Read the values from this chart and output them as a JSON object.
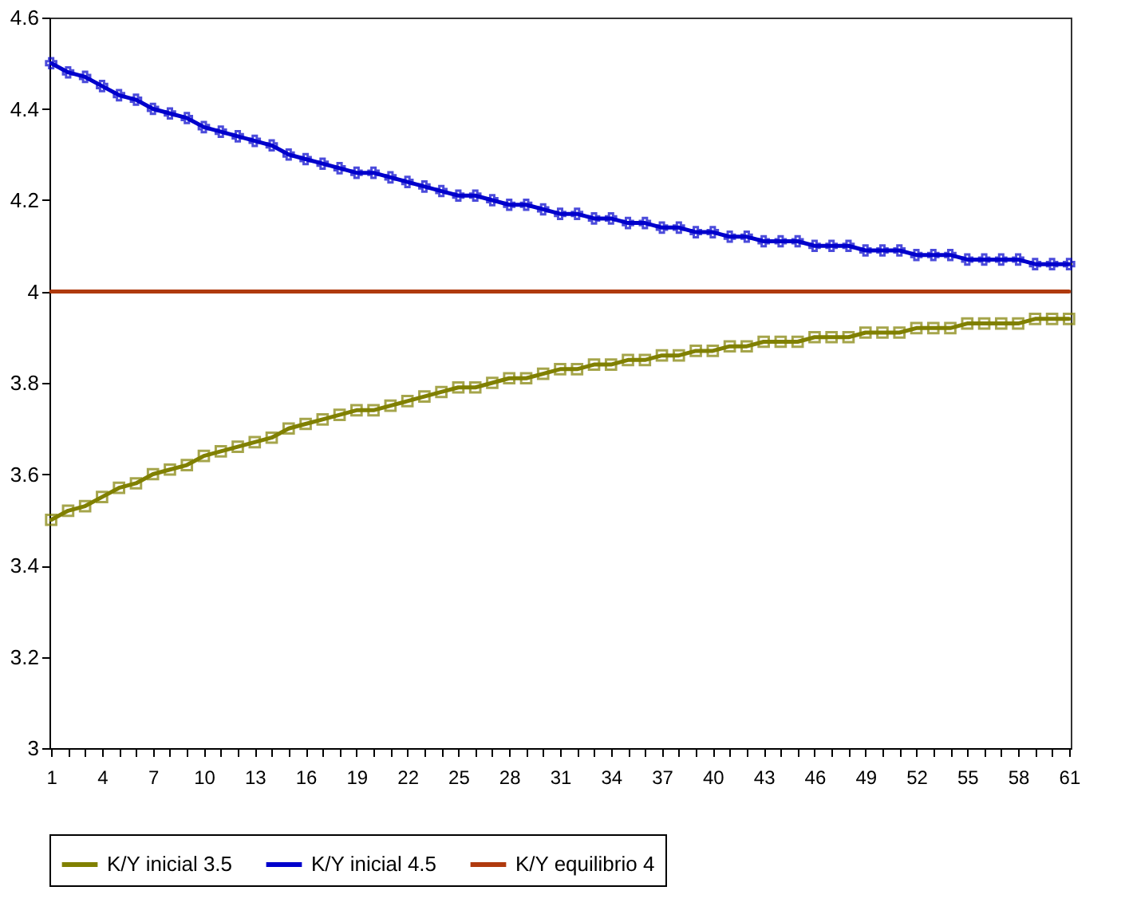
{
  "chart_data": {
    "type": "line",
    "categories": [
      "1",
      null,
      null,
      "4",
      null,
      null,
      "7",
      null,
      null,
      "10",
      null,
      null,
      "13",
      null,
      null,
      "16",
      null,
      null,
      "19",
      null,
      null,
      "22",
      null,
      null,
      "25",
      null,
      null,
      "28",
      null,
      null,
      "31",
      null,
      null,
      "34",
      null,
      null,
      "37",
      null,
      null,
      "40",
      null,
      null,
      "43",
      null,
      null,
      "46",
      null,
      null,
      "49",
      null,
      null,
      "52",
      null,
      null,
      "55",
      null,
      null,
      "58",
      null,
      null,
      "61"
    ],
    "series": [
      {
        "name": "K/Y inicial 3.5",
        "color": "#808000",
        "marker": "square",
        "values": [
          3.5,
          3.52,
          3.53,
          3.55,
          3.57,
          3.58,
          3.6,
          3.61,
          3.62,
          3.64,
          3.65,
          3.66,
          3.67,
          3.68,
          3.7,
          3.71,
          3.72,
          3.73,
          3.74,
          3.74,
          3.75,
          3.76,
          3.77,
          3.78,
          3.79,
          3.79,
          3.8,
          3.81,
          3.81,
          3.82,
          3.83,
          3.83,
          3.84,
          3.84,
          3.85,
          3.85,
          3.86,
          3.86,
          3.87,
          3.87,
          3.88,
          3.88,
          3.89,
          3.89,
          3.89,
          3.9,
          3.9,
          3.9,
          3.91,
          3.91,
          3.91,
          3.92,
          3.92,
          3.92,
          3.93,
          3.93,
          3.93,
          3.93,
          3.94,
          3.94,
          3.94
        ]
      },
      {
        "name": "K/Y inicial 4.5",
        "color": "#0000cc",
        "marker": "cross",
        "values": [
          4.5,
          4.48,
          4.47,
          4.45,
          4.43,
          4.42,
          4.4,
          4.39,
          4.38,
          4.36,
          4.35,
          4.34,
          4.33,
          4.32,
          4.3,
          4.29,
          4.28,
          4.27,
          4.26,
          4.26,
          4.25,
          4.24,
          4.23,
          4.22,
          4.21,
          4.21,
          4.2,
          4.19,
          4.19,
          4.18,
          4.17,
          4.17,
          4.16,
          4.16,
          4.15,
          4.15,
          4.14,
          4.14,
          4.13,
          4.13,
          4.12,
          4.12,
          4.11,
          4.11,
          4.11,
          4.1,
          4.1,
          4.1,
          4.09,
          4.09,
          4.09,
          4.08,
          4.08,
          4.08,
          4.07,
          4.07,
          4.07,
          4.07,
          4.06,
          4.06,
          4.06
        ]
      },
      {
        "name": "K/Y equilibrio 4",
        "color": "#b03a0e",
        "marker": "none",
        "values": [
          4,
          4,
          4,
          4,
          4,
          4,
          4,
          4,
          4,
          4,
          4,
          4,
          4,
          4,
          4,
          4,
          4,
          4,
          4,
          4,
          4,
          4,
          4,
          4,
          4,
          4,
          4,
          4,
          4,
          4,
          4,
          4,
          4,
          4,
          4,
          4,
          4,
          4,
          4,
          4,
          4,
          4,
          4,
          4,
          4,
          4,
          4,
          4,
          4,
          4,
          4,
          4,
          4,
          4,
          4,
          4,
          4,
          4,
          4,
          4,
          4
        ]
      }
    ],
    "ylim": [
      3,
      4.6
    ],
    "yticks": [
      3,
      3.2,
      3.4,
      3.6,
      3.8,
      4,
      4.2,
      4.4,
      4.6
    ],
    "grid": false,
    "legend": "bottom"
  }
}
